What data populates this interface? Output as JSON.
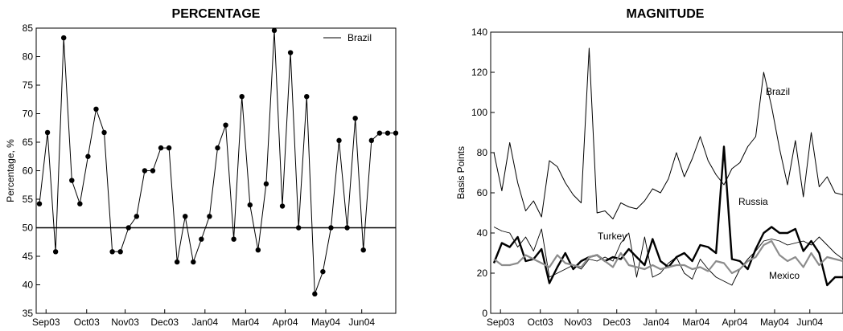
{
  "chart_data": [
    {
      "type": "line",
      "title": "PERCENTAGE",
      "xlabel": "",
      "ylabel": "Percentage, %",
      "ylim": [
        35,
        85
      ],
      "yticks": [
        35,
        40,
        45,
        50,
        55,
        60,
        65,
        70,
        75,
        80,
        85
      ],
      "xticklabels": [
        "Sep03",
        "Oct03",
        "Nov03",
        "Dec03",
        "Jan04",
        "Mar04",
        "Apr04",
        "May04",
        "Jun04"
      ],
      "legend": {
        "position": "top-right",
        "entries": [
          "Brazil"
        ]
      },
      "reference_line": 50,
      "markers": true,
      "series": [
        {
          "name": "Brazil",
          "values": [
            54.2,
            66.7,
            45.8,
            83.3,
            58.3,
            54.2,
            62.5,
            70.8,
            66.7,
            45.8,
            45.8,
            50,
            52,
            60,
            60,
            64,
            64,
            44,
            52,
            44,
            48,
            52,
            64,
            68,
            48,
            73,
            54,
            46.1,
            57.7,
            84.6,
            53.8,
            80.7,
            50,
            73,
            38.4,
            42.3,
            50,
            65.3,
            50,
            69.2,
            46.1,
            65.3,
            66.6,
            66.6,
            66.6
          ]
        }
      ]
    },
    {
      "type": "line",
      "title": "MAGNITUDE",
      "xlabel": "",
      "ylabel": "Basis Points",
      "ylim": [
        0,
        140
      ],
      "yticks": [
        0,
        20,
        40,
        60,
        80,
        100,
        120,
        140
      ],
      "xticklabels": [
        "Sep03",
        "Oct03",
        "Nov03",
        "Dec03",
        "Jan04",
        "Mar04",
        "Apr04",
        "May04",
        "Jun04"
      ],
      "annotations": [
        "Brazil",
        "Russia",
        "Turkey",
        "Mexico"
      ],
      "series": [
        {
          "name": "Brazil",
          "values": [
            80,
            61,
            85,
            65,
            51,
            56,
            48,
            76,
            73,
            65,
            59,
            55,
            132,
            50,
            51,
            47,
            55,
            53,
            52,
            56,
            62,
            60,
            67,
            80,
            68,
            77,
            88,
            76,
            69,
            64,
            72,
            75,
            83,
            88,
            120,
            103,
            82,
            64,
            86,
            58,
            90,
            63,
            68,
            60,
            59
          ]
        },
        {
          "name": "Russia",
          "values": [
            25,
            35,
            33,
            38,
            26,
            27,
            32,
            15,
            23,
            30,
            22,
            26,
            28,
            29,
            26,
            28,
            27,
            32,
            28,
            24,
            37,
            26,
            23,
            28,
            30,
            26,
            34,
            33,
            30,
            83,
            27,
            26,
            22,
            32,
            40,
            43,
            40,
            40,
            42,
            31,
            36,
            30,
            14,
            18,
            18
          ]
        },
        {
          "name": "Turkey",
          "values": [
            43,
            41,
            40,
            33,
            38,
            31,
            42,
            18,
            20,
            22,
            24,
            22,
            27,
            26,
            28,
            26,
            35,
            40,
            18,
            38,
            18,
            20,
            25,
            28,
            20,
            17,
            27,
            22,
            18,
            16,
            14,
            22,
            27,
            31,
            36,
            37,
            36,
            34,
            35,
            36,
            34,
            38,
            34,
            30,
            27
          ]
        },
        {
          "name": "Mexico",
          "values": [
            27,
            24,
            24,
            25,
            29,
            27,
            25,
            23,
            29,
            25,
            24,
            23,
            28,
            29,
            26,
            23,
            30,
            24,
            23,
            22,
            24,
            22,
            23,
            24,
            24,
            22,
            23,
            21,
            26,
            25,
            20,
            22,
            26,
            28,
            34,
            36,
            29,
            26,
            28,
            23,
            30,
            24,
            28,
            27,
            26
          ]
        }
      ]
    }
  ]
}
